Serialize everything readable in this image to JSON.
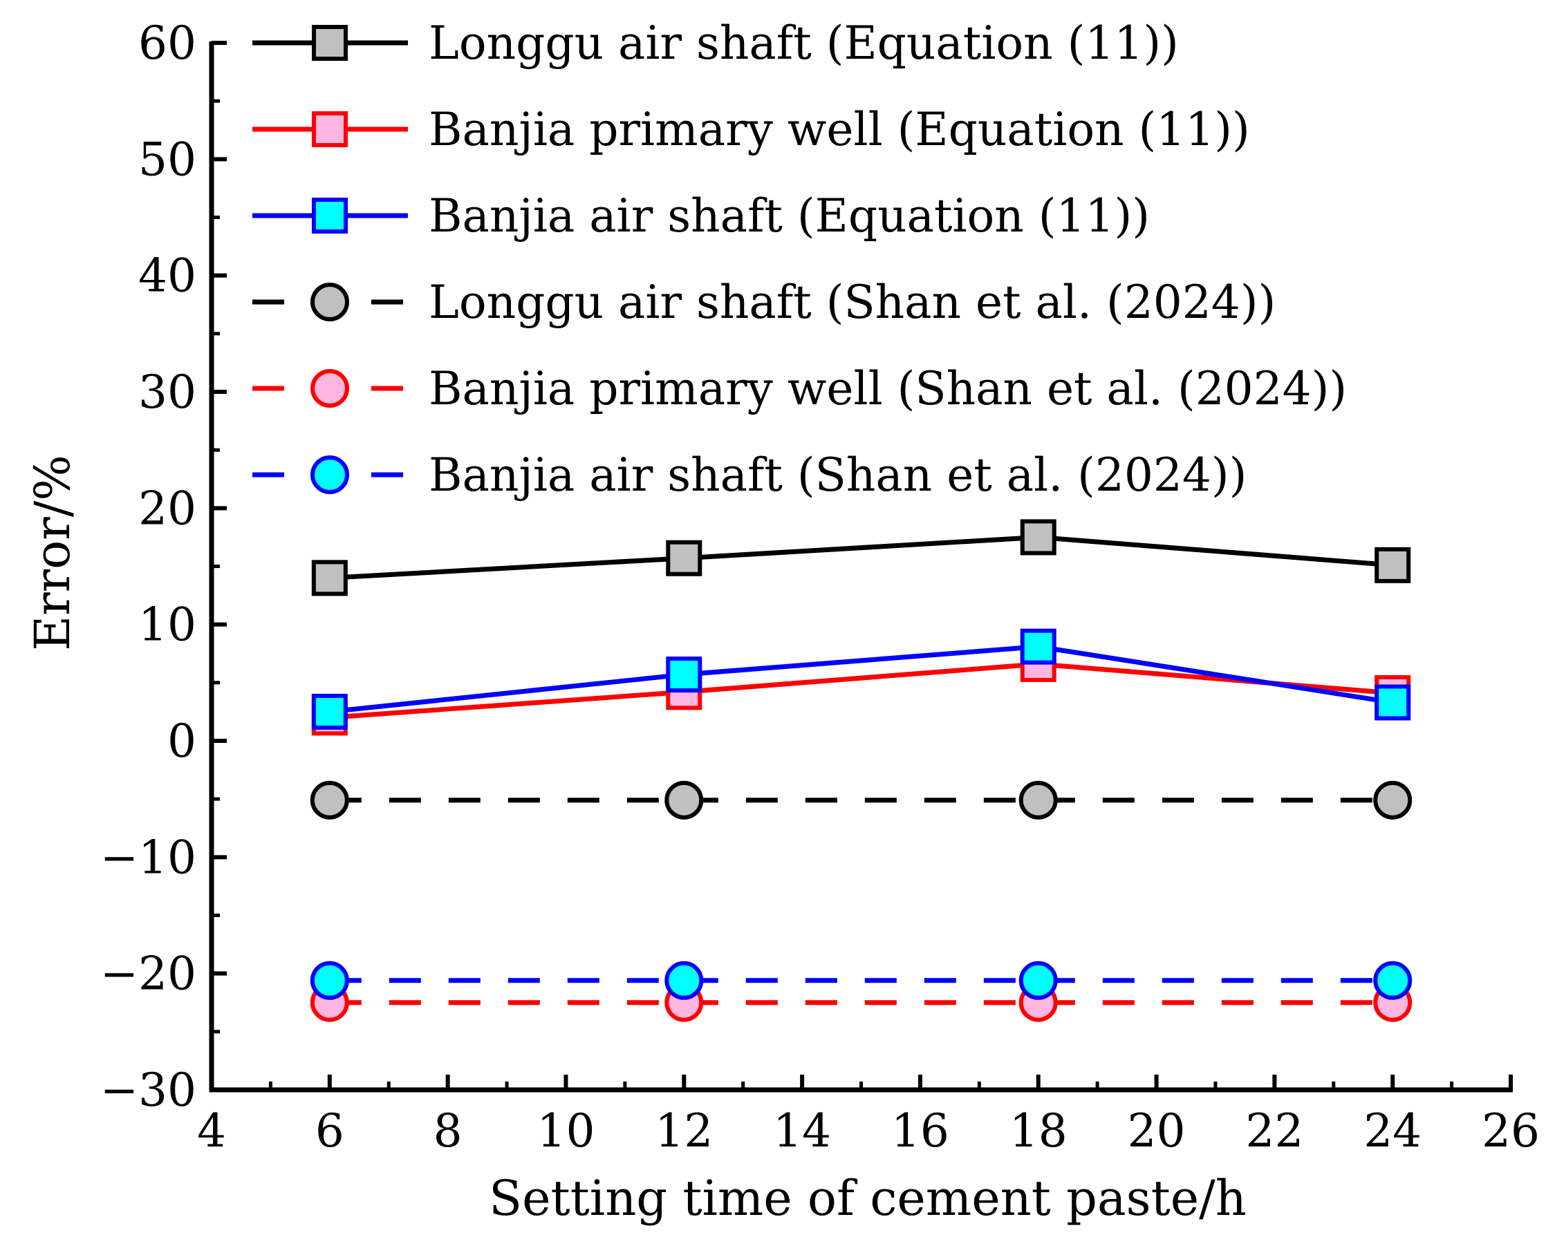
{
  "chart_data": {
    "type": "line",
    "title": "",
    "xlabel": "Setting time of cement paste/h",
    "ylabel": "Error/%",
    "xlim": [
      4,
      26
    ],
    "ylim": [
      -30,
      60
    ],
    "x_ticks": [
      4,
      6,
      8,
      10,
      12,
      14,
      16,
      18,
      20,
      22,
      24,
      26
    ],
    "y_ticks": [
      -30,
      -20,
      -10,
      0,
      10,
      20,
      30,
      40,
      50,
      60
    ],
    "y_tick_labels": [
      "−30",
      "−20",
      "−10",
      "0",
      "10",
      "20",
      "30",
      "40",
      "50",
      "60"
    ],
    "x_tick_labels": [
      "4",
      "6",
      "8",
      "10",
      "12",
      "14",
      "16",
      "18",
      "20",
      "22",
      "24",
      "26"
    ],
    "grid": false,
    "legend_position": "top-left",
    "x": [
      6,
      12,
      18,
      24
    ],
    "series": [
      {
        "name": "Longgu air shaft (Equation (11))",
        "values": [
          14.0,
          15.7,
          17.5,
          15.1
        ],
        "color": "#000000",
        "fill": "#c0c0c0",
        "marker": "square",
        "line_style": "solid"
      },
      {
        "name": "Banjia primary well (Equation (11))",
        "values": [
          2.0,
          4.2,
          6.6,
          4.1
        ],
        "color": "#ff0000",
        "fill": "#ffb6e0",
        "marker": "square",
        "line_style": "solid"
      },
      {
        "name": "Banjia air shaft (Equation (11))",
        "values": [
          2.5,
          5.7,
          8.1,
          3.3
        ],
        "color": "#0000ff",
        "fill": "#00ffff",
        "marker": "square",
        "line_style": "solid"
      },
      {
        "name": "Longgu air shaft (Shan et al.  (2024))",
        "values": [
          -5.1,
          -5.1,
          -5.1,
          -5.1
        ],
        "color": "#000000",
        "fill": "#c0c0c0",
        "marker": "circle",
        "line_style": "dashed"
      },
      {
        "name": "Banjia primary well (Shan et al.  (2024))",
        "values": [
          -22.5,
          -22.5,
          -22.5,
          -22.5
        ],
        "color": "#ff0000",
        "fill": "#ffb6e0",
        "marker": "circle",
        "line_style": "dashed"
      },
      {
        "name": "Banjia air shaft (Shan et al.  (2024))",
        "values": [
          -20.6,
          -20.6,
          -20.6,
          -20.6
        ],
        "color": "#0000ff",
        "fill": "#00ffff",
        "marker": "circle",
        "line_style": "dashed"
      }
    ]
  }
}
